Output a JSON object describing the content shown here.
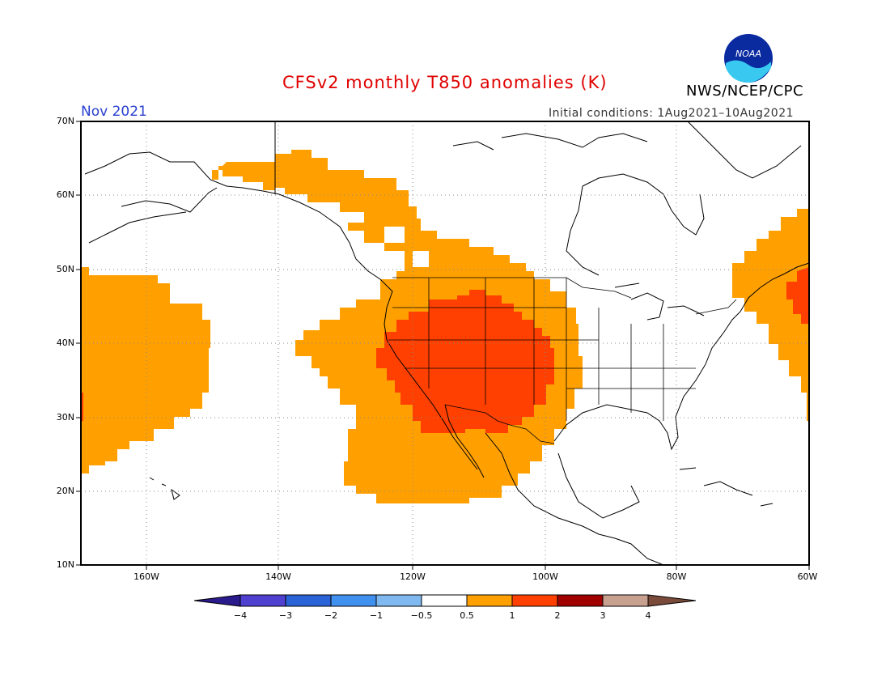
{
  "header": {
    "title": "CFSv2 monthly T850 anomalies (K)",
    "month": "Nov 2021",
    "initial_conditions": "Initial conditions: 1Aug2021–10Aug2021",
    "organization": "NWS/NCEP/CPC",
    "logo_text": "NOAA"
  },
  "map": {
    "lat_labels": [
      "70N",
      "60N",
      "50N",
      "40N",
      "30N",
      "20N",
      "10N"
    ],
    "lon_labels": [
      "160W",
      "140W",
      "120W",
      "100W",
      "80W",
      "60W"
    ],
    "colors": {
      "anom_0_5_1": "#ffa000",
      "anom_1_2": "#ff4000",
      "land_outline": "#000000",
      "grid": "#888888"
    }
  },
  "colorbar": {
    "labels": [
      "−4",
      "−3",
      "−2",
      "−1",
      "−0.5",
      "0.5",
      "1",
      "2",
      "3",
      "4"
    ],
    "colors": [
      "#2a1a8c",
      "#5040d0",
      "#2a62d8",
      "#4090f0",
      "#80b8f0",
      "#ffffff",
      "#ffa000",
      "#ff4000",
      "#a00000",
      "#c8a090",
      "#7a4a3a"
    ]
  }
}
